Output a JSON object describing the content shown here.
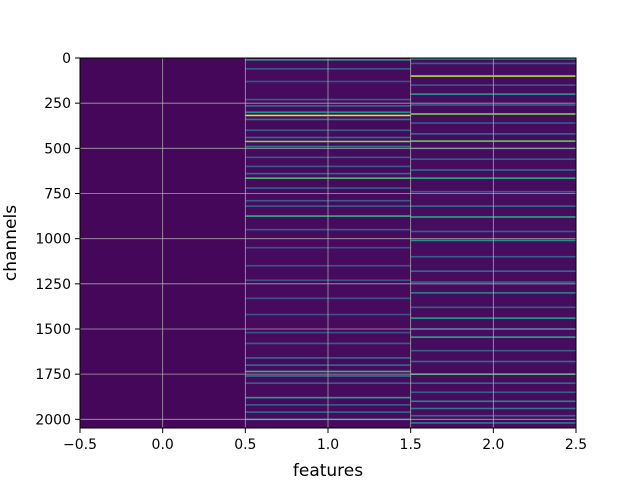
{
  "chart_data": {
    "type": "heatmap",
    "title": "",
    "xlabel": "features",
    "ylabel": "channels",
    "xlim": [
      -0.5,
      2.5
    ],
    "ylim": [
      2048,
      0
    ],
    "y_inverted": true,
    "xticks": [
      -0.5,
      0.0,
      0.5,
      1.0,
      1.5,
      2.0,
      2.5
    ],
    "xtick_labels": [
      "−0.5",
      "0.0",
      "0.5",
      "1.0",
      "1.5",
      "2.0",
      "2.5"
    ],
    "yticks": [
      0,
      250,
      500,
      750,
      1000,
      1250,
      1500,
      1750,
      2000
    ],
    "ytick_labels": [
      "0",
      "250",
      "500",
      "750",
      "1000",
      "1250",
      "1500",
      "1750",
      "2000"
    ],
    "grid": true,
    "colormap": "viridis",
    "colors": {
      "background": "#440154",
      "low": "#46085c",
      "mid": "#3b528b",
      "high": "#21918c",
      "peak": "#5ec962",
      "max": "#c8e020",
      "grid": "#b0b0b0"
    },
    "columns": [
      {
        "feature": 0,
        "base_value": 0.03,
        "bright_rows": []
      },
      {
        "feature": 1,
        "base_value": 0.05,
        "bright_rows": [
          {
            "channel": 10,
            "value": 0.55
          },
          {
            "channel": 60,
            "value": 0.3
          },
          {
            "channel": 130,
            "value": 0.25
          },
          {
            "channel": 230,
            "value": 0.3
          },
          {
            "channel": 265,
            "value": 0.35
          },
          {
            "channel": 300,
            "value": 0.5
          },
          {
            "channel": 318,
            "value": 0.95
          },
          {
            "channel": 340,
            "value": 0.4
          },
          {
            "channel": 400,
            "value": 0.3
          },
          {
            "channel": 440,
            "value": 0.35
          },
          {
            "channel": 462,
            "value": 0.8
          },
          {
            "channel": 490,
            "value": 0.4
          },
          {
            "channel": 550,
            "value": 0.3
          },
          {
            "channel": 600,
            "value": 0.3
          },
          {
            "channel": 640,
            "value": 0.35
          },
          {
            "channel": 665,
            "value": 0.7
          },
          {
            "channel": 720,
            "value": 0.3
          },
          {
            "channel": 790,
            "value": 0.3
          },
          {
            "channel": 820,
            "value": 0.3
          },
          {
            "channel": 875,
            "value": 0.65
          },
          {
            "channel": 950,
            "value": 0.3
          },
          {
            "channel": 1050,
            "value": 0.25
          },
          {
            "channel": 1150,
            "value": 0.25
          },
          {
            "channel": 1230,
            "value": 0.25
          },
          {
            "channel": 1330,
            "value": 0.25
          },
          {
            "channel": 1420,
            "value": 0.25
          },
          {
            "channel": 1520,
            "value": 0.25
          },
          {
            "channel": 1580,
            "value": 0.3
          },
          {
            "channel": 1660,
            "value": 0.35
          },
          {
            "channel": 1700,
            "value": 0.35
          },
          {
            "channel": 1735,
            "value": 0.65
          },
          {
            "channel": 1760,
            "value": 0.4
          },
          {
            "channel": 1800,
            "value": 0.3
          },
          {
            "channel": 1880,
            "value": 0.55
          },
          {
            "channel": 1920,
            "value": 0.3
          },
          {
            "channel": 1960,
            "value": 0.35
          },
          {
            "channel": 2000,
            "value": 0.4
          }
        ]
      },
      {
        "feature": 2,
        "base_value": 0.06,
        "bright_rows": [
          {
            "channel": 5,
            "value": 0.5
          },
          {
            "channel": 30,
            "value": 0.3
          },
          {
            "channel": 100,
            "value": 0.9
          },
          {
            "channel": 150,
            "value": 0.3
          },
          {
            "channel": 200,
            "value": 0.55
          },
          {
            "channel": 260,
            "value": 0.3
          },
          {
            "channel": 310,
            "value": 0.8
          },
          {
            "channel": 360,
            "value": 0.3
          },
          {
            "channel": 420,
            "value": 0.35
          },
          {
            "channel": 460,
            "value": 0.75
          },
          {
            "channel": 500,
            "value": 0.35
          },
          {
            "channel": 560,
            "value": 0.3
          },
          {
            "channel": 620,
            "value": 0.35
          },
          {
            "channel": 665,
            "value": 0.6
          },
          {
            "channel": 740,
            "value": 0.3
          },
          {
            "channel": 820,
            "value": 0.35
          },
          {
            "channel": 880,
            "value": 0.6
          },
          {
            "channel": 960,
            "value": 0.3
          },
          {
            "channel": 1010,
            "value": 0.5
          },
          {
            "channel": 1100,
            "value": 0.3
          },
          {
            "channel": 1180,
            "value": 0.35
          },
          {
            "channel": 1240,
            "value": 0.3
          },
          {
            "channel": 1300,
            "value": 0.45
          },
          {
            "channel": 1380,
            "value": 0.3
          },
          {
            "channel": 1440,
            "value": 0.55
          },
          {
            "channel": 1500,
            "value": 0.3
          },
          {
            "channel": 1545,
            "value": 0.6
          },
          {
            "channel": 1620,
            "value": 0.3
          },
          {
            "channel": 1680,
            "value": 0.35
          },
          {
            "channel": 1750,
            "value": 0.65
          },
          {
            "channel": 1800,
            "value": 0.35
          },
          {
            "channel": 1850,
            "value": 0.3
          },
          {
            "channel": 1900,
            "value": 0.45
          },
          {
            "channel": 1940,
            "value": 0.4
          },
          {
            "channel": 1980,
            "value": 0.35
          },
          {
            "channel": 2020,
            "value": 0.4
          }
        ]
      }
    ]
  }
}
